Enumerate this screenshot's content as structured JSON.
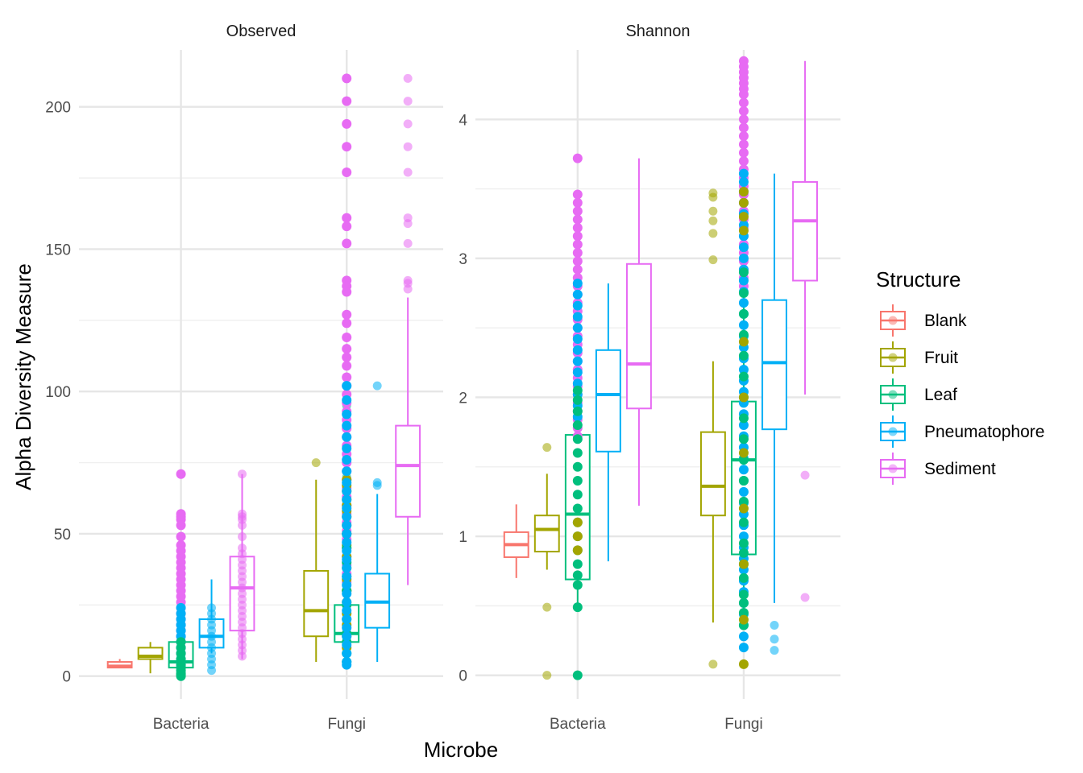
{
  "chart_data": {
    "type": "box",
    "xlabel": "Microbe",
    "ylabel": "Alpha Diversity Measure",
    "categories": [
      "Bacteria",
      "Fungi"
    ],
    "grid": true,
    "legend": {
      "title": "Structure",
      "placement": "right",
      "items": [
        {
          "name": "Blank",
          "color": "#F8766D"
        },
        {
          "name": "Fruit",
          "color": "#A3A500"
        },
        {
          "name": "Leaf",
          "color": "#00BF7D"
        },
        {
          "name": "Pneumatophore",
          "color": "#00B0F6"
        },
        {
          "name": "Sediment",
          "color": "#E76BF3"
        }
      ]
    },
    "facets": [
      {
        "title": "Observed",
        "ylim": [
          -8,
          220
        ],
        "yticks": [
          0,
          50,
          100,
          150,
          200
        ],
        "groups": [
          {
            "microbe": "Bacteria",
            "structure": "Blank",
            "min": 3,
            "q1": 3,
            "median": 3.5,
            "q3": 5,
            "max": 6,
            "outliers": []
          },
          {
            "microbe": "Bacteria",
            "structure": "Fruit",
            "min": 1,
            "q1": 6,
            "median": 7,
            "q3": 10,
            "max": 12,
            "outliers": []
          },
          {
            "microbe": "Bacteria",
            "structure": "Leaf",
            "min": 1,
            "q1": 3,
            "median": 5,
            "q3": 12,
            "max": 21,
            "outliers": [
              0,
              0.5,
              1,
              1.5,
              2,
              2.5,
              3
            ]
          },
          {
            "microbe": "Bacteria",
            "structure": "Pneumatophore",
            "min": 8,
            "q1": 10,
            "median": 14,
            "q3": 20,
            "max": 34,
            "outliers": [
              2,
              4,
              6,
              8,
              10,
              12,
              14,
              16,
              18,
              20,
              22,
              24
            ]
          },
          {
            "microbe": "Bacteria",
            "structure": "Sediment",
            "min": 6,
            "q1": 16,
            "median": 31,
            "q3": 42,
            "max": 71,
            "outliers": [
              71,
              57,
              56,
              55,
              53,
              49,
              45,
              43,
              41,
              39,
              37,
              35,
              33,
              31,
              29,
              27,
              25,
              23,
              21,
              19,
              17,
              15,
              13,
              11,
              9,
              7
            ]
          },
          {
            "microbe": "Fungi",
            "structure": "Fruit",
            "min": 5,
            "q1": 14,
            "median": 23,
            "q3": 37,
            "max": 69,
            "outliers": [
              75
            ]
          },
          {
            "microbe": "Fungi",
            "structure": "Leaf",
            "min": 5,
            "q1": 12,
            "median": 15,
            "q3": 25,
            "max": 31,
            "outliers": [
              97,
              95,
              90,
              76,
              75,
              70,
              68,
              65,
              62,
              49
            ]
          },
          {
            "microbe": "Fungi",
            "structure": "Pneumatophore",
            "min": 5,
            "q1": 17,
            "median": 26,
            "q3": 36,
            "max": 64,
            "outliers": [
              102,
              68,
              67
            ]
          },
          {
            "microbe": "Fungi",
            "structure": "Sediment",
            "min": 32,
            "q1": 56,
            "median": 74,
            "q3": 88,
            "max": 133,
            "outliers": [
              210,
              202,
              194,
              186,
              177,
              161,
              159,
              152,
              139,
              138,
              136
            ]
          }
        ],
        "jitter": [
          {
            "microbe": "Bacteria",
            "structure": "Sediment",
            "values": [
              71,
              57,
              56,
              55,
              53,
              49,
              46,
              44,
              42,
              40,
              38,
              36,
              34,
              32,
              30,
              28,
              26,
              24,
              22,
              20,
              18,
              16,
              14,
              12,
              10,
              8
            ]
          },
          {
            "microbe": "Bacteria",
            "structure": "Pneumatophore",
            "values": [
              24,
              22,
              20,
              18,
              16,
              14,
              12,
              10,
              8,
              6,
              4
            ]
          },
          {
            "microbe": "Bacteria",
            "structure": "Leaf",
            "values": [
              12,
              10,
              8,
              6,
              4,
              3,
              2,
              1,
              0.5,
              0
            ]
          },
          {
            "microbe": "Fungi",
            "structure": "Sediment",
            "values": [
              210,
              202,
              194,
              186,
              177,
              161,
              158,
              152,
              139,
              137,
              135,
              127,
              124,
              119,
              115,
              112,
              109,
              105,
              102,
              99,
              96,
              93,
              90,
              87,
              84,
              81,
              78,
              75,
              72,
              69,
              66,
              63,
              60,
              57,
              54,
              51,
              48,
              45,
              42,
              39,
              36,
              33,
              30
            ]
          },
          {
            "microbe": "Fungi",
            "structure": "Fruit",
            "values": [
              69,
              67,
              65,
              62,
              60,
              58,
              56,
              53,
              50,
              46,
              42,
              38,
              34,
              30,
              26,
              22,
              18,
              14,
              10
            ]
          },
          {
            "microbe": "Fungi",
            "structure": "Leaf",
            "values": [
              50,
              45,
              40,
              35,
              30,
              25,
              20,
              15,
              12,
              8,
              5
            ]
          },
          {
            "microbe": "Fungi",
            "structure": "Pneumatophore",
            "values": [
              102,
              97,
              92,
              88,
              84,
              80,
              76,
              72,
              68,
              65,
              62,
              59,
              56,
              53,
              50,
              47,
              44,
              41,
              38,
              35,
              32,
              29,
              26,
              23,
              20,
              17,
              14,
              11,
              8,
              5,
              4
            ]
          }
        ]
      },
      {
        "title": "Shannon",
        "ylim": [
          -0.17,
          4.5
        ],
        "yticks": [
          0,
          1,
          2,
          3,
          4
        ],
        "groups": [
          {
            "microbe": "Bacteria",
            "structure": "Blank",
            "min": 0.7,
            "q1": 0.85,
            "median": 0.94,
            "q3": 1.03,
            "max": 1.23,
            "outliers": []
          },
          {
            "microbe": "Bacteria",
            "structure": "Fruit",
            "min": 0.76,
            "q1": 0.89,
            "median": 1.05,
            "q3": 1.15,
            "max": 1.45,
            "outliers": [
              1.64,
              0.49,
              0
            ]
          },
          {
            "microbe": "Bacteria",
            "structure": "Leaf",
            "min": 0.49,
            "q1": 0.69,
            "median": 1.16,
            "q3": 1.73,
            "max": 2.05,
            "outliers": [
              0,
              0.65
            ]
          },
          {
            "microbe": "Bacteria",
            "structure": "Pneumatophore",
            "min": 0.82,
            "q1": 1.61,
            "median": 2.02,
            "q3": 2.34,
            "max": 2.82,
            "outliers": []
          },
          {
            "microbe": "Bacteria",
            "structure": "Sediment",
            "min": 1.22,
            "q1": 1.92,
            "median": 2.24,
            "q3": 2.96,
            "max": 3.72,
            "outliers": []
          },
          {
            "microbe": "Fungi",
            "structure": "Fruit",
            "min": 0.38,
            "q1": 1.15,
            "median": 1.36,
            "q3": 1.75,
            "max": 2.26,
            "outliers": [
              3.47,
              3.44,
              3.34,
              3.27,
              3.18,
              2.99,
              0.08
            ]
          },
          {
            "microbe": "Fungi",
            "structure": "Leaf",
            "min": 0.36,
            "q1": 0.87,
            "median": 1.55,
            "q3": 1.97,
            "max": 2.88,
            "outliers": []
          },
          {
            "microbe": "Fungi",
            "structure": "Pneumatophore",
            "min": 0.52,
            "q1": 1.77,
            "median": 2.25,
            "q3": 2.7,
            "max": 3.61,
            "outliers": [
              0.36,
              0.26,
              0.18
            ]
          },
          {
            "microbe": "Fungi",
            "structure": "Sediment",
            "min": 2.02,
            "q1": 2.84,
            "median": 3.27,
            "q3": 3.55,
            "max": 4.42,
            "outliers": [
              1.44,
              0.56
            ]
          }
        ],
        "jitter": [
          {
            "microbe": "Bacteria",
            "structure": "Sediment",
            "values": [
              3.72,
              3.46,
              3.4,
              3.34,
              3.28,
              3.22,
              3.16,
              3.1,
              3.04,
              2.98,
              2.92,
              2.86,
              2.8,
              2.74,
              2.68,
              2.62,
              2.56,
              2.5,
              2.44,
              2.38,
              2.32,
              2.26,
              2.2,
              2.14,
              2.08,
              2.02,
              1.96,
              1.9,
              1.84,
              1.78,
              1.72
            ]
          },
          {
            "microbe": "Bacteria",
            "structure": "Pneumatophore",
            "values": [
              2.82,
              2.74,
              2.66,
              2.58,
              2.5,
              2.42,
              2.34,
              2.26,
              2.18,
              2.1,
              2.02,
              1.94,
              1.86
            ]
          },
          {
            "microbe": "Bacteria",
            "structure": "Leaf",
            "values": [
              2.05,
              1.98,
              1.9,
              1.8,
              1.7,
              1.6,
              1.5,
              1.4,
              1.3,
              1.2,
              1.1,
              1.0,
              0.9,
              0.8,
              0.72,
              0.65,
              0.49,
              0
            ]
          },
          {
            "microbe": "Bacteria",
            "structure": "Fruit",
            "values": [
              1.1,
              1.0,
              0.9
            ]
          },
          {
            "microbe": "Fungi",
            "structure": "Sediment",
            "values": [
              4.42,
              4.38,
              4.34,
              4.3,
              4.26,
              4.22,
              4.18,
              4.12,
              4.06,
              4.0,
              3.94,
              3.88,
              3.82,
              3.76,
              3.7,
              3.64,
              3.58,
              3.52,
              3.46,
              3.4,
              3.34,
              3.28,
              3.22,
              3.16,
              3.1,
              3.04,
              2.98,
              2.92,
              2.86,
              2.8
            ]
          },
          {
            "microbe": "Fungi",
            "structure": "Pneumatophore",
            "values": [
              3.61,
              3.55,
              3.48,
              3.4,
              3.32,
              3.24,
              3.16,
              3.08,
              3.0,
              2.92,
              2.84,
              2.76,
              2.68,
              2.6,
              2.52,
              2.44,
              2.36,
              2.28,
              2.2,
              2.12,
              2.04,
              1.96,
              1.88,
              1.8,
              1.72,
              1.64,
              1.56,
              1.48,
              1.4,
              1.32,
              1.24,
              1.16,
              1.08,
              1.0,
              0.92,
              0.84,
              0.76,
              0.68,
              0.6,
              0.52,
              0.44,
              0.36,
              0.28,
              0.2
            ]
          },
          {
            "microbe": "Fungi",
            "structure": "Leaf",
            "values": [
              2.9,
              2.75,
              2.6,
              2.45,
              2.3,
              2.15,
              2.0,
              1.85,
              1.7,
              1.55,
              1.4,
              1.25,
              1.1,
              0.95,
              0.88,
              0.8,
              0.7,
              0.58,
              0.52,
              0.45,
              0.36
            ]
          },
          {
            "microbe": "Fungi",
            "structure": "Fruit",
            "values": [
              3.48,
              3.4,
              3.3,
              3.2,
              2.4,
              2.0,
              1.6,
              1.2,
              0.8,
              0.4,
              0.08
            ]
          }
        ]
      }
    ]
  }
}
